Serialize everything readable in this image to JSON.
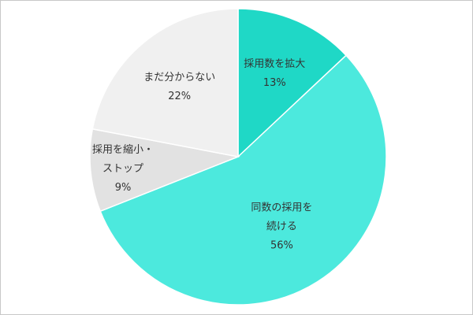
{
  "chart_data": {
    "type": "pie",
    "start": "top",
    "direction": "clockwise",
    "slices": [
      {
        "label_lines": [
          "採用数を拡大"
        ],
        "value": 13,
        "value_label": "13%",
        "color": "#1fd8c6"
      },
      {
        "label_lines": [
          "同数の採用を",
          "続ける"
        ],
        "value": 56,
        "value_label": "56%",
        "color": "#4ce9dd"
      },
      {
        "label_lines": [
          "採用を縮小・",
          "ストップ"
        ],
        "value": 9,
        "value_label": "9%",
        "color": "#e2e2e2"
      },
      {
        "label_lines": [
          "まだ分からない"
        ],
        "value": 22,
        "value_label": "22%",
        "color": "#f0f0f0"
      }
    ]
  }
}
